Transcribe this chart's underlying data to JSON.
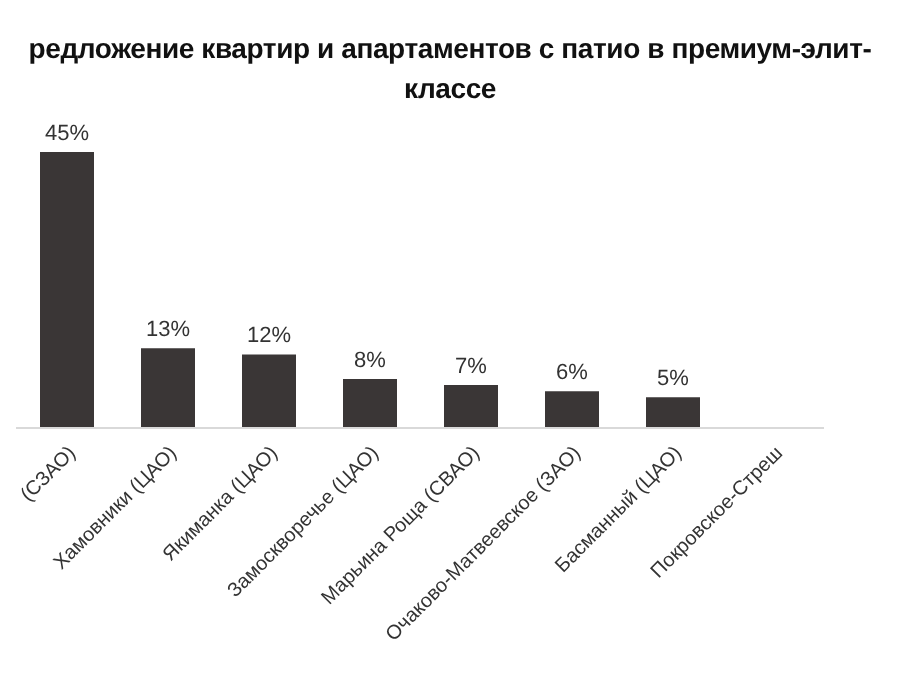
{
  "chart_data": {
    "type": "bar",
    "title": "редложение  квартир и апартаментов  с патио в премиум-элит-классе",
    "categories": [
      "(СЗАО)",
      "Хамовники (ЦАО)",
      "Якиманка (ЦАО)",
      "Замоскворечье (ЦАО)",
      "Марьина Роща (СВАО)",
      "Очаково-Матвеевское (ЗАО)",
      "Басманный (ЦАО)",
      "Покровское-Стреш"
    ],
    "values": [
      45,
      13,
      12,
      8,
      7,
      6,
      5,
      null
    ],
    "value_labels": [
      "45%",
      "13%",
      "12%",
      "8%",
      "7%",
      "6%",
      "5%",
      null
    ],
    "color": "#3a3636",
    "tick_labels": "x"
  }
}
